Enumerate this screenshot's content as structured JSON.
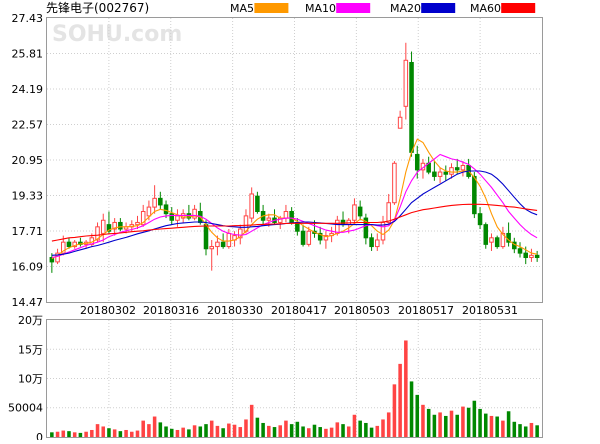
{
  "title": "先锋电子(002767)",
  "watermark": "SOHU.com",
  "legend": [
    {
      "label": "MA5",
      "color": "#ff9900"
    },
    {
      "label": "MA10",
      "color": "#ff00ff"
    },
    {
      "label": "MA20",
      "color": "#0000cc"
    },
    {
      "label": "MA60",
      "color": "#ff0000"
    }
  ],
  "colors": {
    "up": "#ff4444",
    "down": "#008800"
  },
  "chart_data": {
    "type": "candlestick",
    "y_ticks": [
      "27.43",
      "25.81",
      "24.19",
      "22.57",
      "20.95",
      "19.33",
      "17.71",
      "16.09",
      "14.47"
    ],
    "ylim": [
      14.47,
      27.43
    ],
    "x_labels": [
      "20180302",
      "20180316",
      "20180330",
      "20180417",
      "20180503",
      "20180517",
      "20180531"
    ],
    "volume_ticks": [
      "20万",
      "15万",
      "10万",
      "50004",
      "0"
    ],
    "volume_lim": [
      0,
      200000
    ],
    "candles": [
      {
        "o": 16.5,
        "h": 16.7,
        "l": 15.8,
        "c": 16.3
      },
      {
        "o": 16.3,
        "h": 16.9,
        "l": 16.2,
        "c": 16.7
      },
      {
        "o": 16.7,
        "h": 17.5,
        "l": 16.6,
        "c": 17.2
      },
      {
        "o": 17.2,
        "h": 17.4,
        "l": 16.9,
        "c": 17.0
      },
      {
        "o": 17.0,
        "h": 17.3,
        "l": 16.9,
        "c": 17.2
      },
      {
        "o": 17.2,
        "h": 17.4,
        "l": 17.0,
        "c": 17.1
      },
      {
        "o": 17.1,
        "h": 17.3,
        "l": 16.9,
        "c": 17.2
      },
      {
        "o": 17.1,
        "h": 17.6,
        "l": 17.0,
        "c": 17.4
      },
      {
        "o": 17.3,
        "h": 18.1,
        "l": 17.2,
        "c": 17.9
      },
      {
        "o": 17.6,
        "h": 18.5,
        "l": 17.2,
        "c": 18.2
      },
      {
        "o": 18.0,
        "h": 18.6,
        "l": 17.6,
        "c": 17.7
      },
      {
        "o": 17.8,
        "h": 18.3,
        "l": 17.5,
        "c": 18.1
      },
      {
        "o": 18.1,
        "h": 18.3,
        "l": 17.7,
        "c": 17.8
      },
      {
        "o": 17.8,
        "h": 18.1,
        "l": 17.6,
        "c": 17.9
      },
      {
        "o": 17.9,
        "h": 18.2,
        "l": 17.7,
        "c": 18.0
      },
      {
        "o": 18.0,
        "h": 18.4,
        "l": 17.8,
        "c": 18.1
      },
      {
        "o": 18.0,
        "h": 18.9,
        "l": 17.9,
        "c": 18.6
      },
      {
        "o": 18.4,
        "h": 19.1,
        "l": 18.2,
        "c": 18.8
      },
      {
        "o": 18.8,
        "h": 19.8,
        "l": 18.5,
        "c": 19.2
      },
      {
        "o": 19.2,
        "h": 19.5,
        "l": 18.7,
        "c": 18.9
      },
      {
        "o": 18.9,
        "h": 19.1,
        "l": 18.3,
        "c": 18.5
      },
      {
        "o": 18.5,
        "h": 18.8,
        "l": 18.0,
        "c": 18.2
      },
      {
        "o": 18.2,
        "h": 18.7,
        "l": 17.9,
        "c": 18.4
      },
      {
        "o": 18.3,
        "h": 18.7,
        "l": 18.1,
        "c": 18.5
      },
      {
        "o": 18.5,
        "h": 18.9,
        "l": 18.2,
        "c": 18.3
      },
      {
        "o": 18.3,
        "h": 18.9,
        "l": 18.2,
        "c": 18.7
      },
      {
        "o": 18.6,
        "h": 19.0,
        "l": 18.0,
        "c": 18.1
      },
      {
        "o": 18.0,
        "h": 18.2,
        "l": 16.6,
        "c": 16.9
      },
      {
        "o": 16.9,
        "h": 17.3,
        "l": 15.9,
        "c": 17.0
      },
      {
        "o": 17.0,
        "h": 17.5,
        "l": 16.6,
        "c": 17.2
      },
      {
        "o": 17.2,
        "h": 17.6,
        "l": 16.9,
        "c": 17.0
      },
      {
        "o": 17.0,
        "h": 17.8,
        "l": 16.9,
        "c": 17.6
      },
      {
        "o": 17.3,
        "h": 17.7,
        "l": 17.0,
        "c": 17.5
      },
      {
        "o": 17.4,
        "h": 18.0,
        "l": 17.1,
        "c": 17.8
      },
      {
        "o": 17.7,
        "h": 18.7,
        "l": 17.6,
        "c": 18.4
      },
      {
        "o": 18.3,
        "h": 19.7,
        "l": 18.1,
        "c": 19.4
      },
      {
        "o": 19.3,
        "h": 19.5,
        "l": 18.5,
        "c": 18.6
      },
      {
        "o": 18.6,
        "h": 18.9,
        "l": 18.0,
        "c": 18.2
      },
      {
        "o": 18.2,
        "h": 18.5,
        "l": 17.9,
        "c": 18.3
      },
      {
        "o": 18.3,
        "h": 18.7,
        "l": 18.0,
        "c": 18.1
      },
      {
        "o": 18.1,
        "h": 18.4,
        "l": 17.8,
        "c": 18.3
      },
      {
        "o": 18.3,
        "h": 18.9,
        "l": 18.1,
        "c": 18.6
      },
      {
        "o": 18.6,
        "h": 18.8,
        "l": 18.0,
        "c": 18.1
      },
      {
        "o": 18.1,
        "h": 18.3,
        "l": 17.5,
        "c": 17.7
      },
      {
        "o": 17.7,
        "h": 18.0,
        "l": 17.0,
        "c": 17.1
      },
      {
        "o": 17.1,
        "h": 17.9,
        "l": 17.0,
        "c": 17.7
      },
      {
        "o": 17.7,
        "h": 18.2,
        "l": 17.4,
        "c": 17.6
      },
      {
        "o": 17.6,
        "h": 17.9,
        "l": 17.1,
        "c": 17.3
      },
      {
        "o": 17.3,
        "h": 17.7,
        "l": 16.9,
        "c": 17.5
      },
      {
        "o": 17.5,
        "h": 17.9,
        "l": 17.2,
        "c": 17.6
      },
      {
        "o": 17.6,
        "h": 18.4,
        "l": 17.5,
        "c": 18.2
      },
      {
        "o": 18.2,
        "h": 18.6,
        "l": 17.9,
        "c": 18.0
      },
      {
        "o": 18.0,
        "h": 18.3,
        "l": 17.6,
        "c": 18.2
      },
      {
        "o": 18.2,
        "h": 19.2,
        "l": 18.0,
        "c": 18.9
      },
      {
        "o": 18.8,
        "h": 19.1,
        "l": 18.2,
        "c": 18.4
      },
      {
        "o": 18.3,
        "h": 18.5,
        "l": 17.1,
        "c": 17.4
      },
      {
        "o": 17.4,
        "h": 17.6,
        "l": 16.8,
        "c": 17.0
      },
      {
        "o": 17.0,
        "h": 17.6,
        "l": 16.8,
        "c": 17.3
      },
      {
        "o": 17.3,
        "h": 18.4,
        "l": 17.1,
        "c": 18.1
      },
      {
        "o": 18.1,
        "h": 19.4,
        "l": 18.0,
        "c": 19.0
      },
      {
        "o": 19.0,
        "h": 20.9,
        "l": 18.9,
        "c": 20.8
      },
      {
        "o": 22.4,
        "h": 23.2,
        "l": 22.4,
        "c": 22.9
      },
      {
        "o": 23.4,
        "h": 26.3,
        "l": 22.8,
        "c": 25.5
      },
      {
        "o": 25.4,
        "h": 25.9,
        "l": 21.1,
        "c": 21.3
      },
      {
        "o": 21.2,
        "h": 21.6,
        "l": 20.1,
        "c": 20.5
      },
      {
        "o": 20.5,
        "h": 21.0,
        "l": 20.1,
        "c": 20.8
      },
      {
        "o": 20.8,
        "h": 21.1,
        "l": 20.3,
        "c": 20.4
      },
      {
        "o": 20.4,
        "h": 20.9,
        "l": 20.0,
        "c": 20.2
      },
      {
        "o": 20.2,
        "h": 20.6,
        "l": 19.9,
        "c": 20.4
      },
      {
        "o": 20.4,
        "h": 20.7,
        "l": 20.0,
        "c": 20.3
      },
      {
        "o": 20.3,
        "h": 20.8,
        "l": 20.1,
        "c": 20.6
      },
      {
        "o": 20.6,
        "h": 21.0,
        "l": 20.3,
        "c": 20.5
      },
      {
        "o": 20.5,
        "h": 20.9,
        "l": 20.2,
        "c": 20.7
      },
      {
        "o": 20.7,
        "h": 21.0,
        "l": 20.1,
        "c": 20.2
      },
      {
        "o": 20.2,
        "h": 20.4,
        "l": 18.3,
        "c": 18.5
      },
      {
        "o": 18.5,
        "h": 18.8,
        "l": 17.8,
        "c": 18.0
      },
      {
        "o": 18.0,
        "h": 18.1,
        "l": 16.9,
        "c": 17.1
      },
      {
        "o": 17.2,
        "h": 17.6,
        "l": 16.8,
        "c": 17.4
      },
      {
        "o": 17.4,
        "h": 17.5,
        "l": 16.9,
        "c": 17.0
      },
      {
        "o": 17.0,
        "h": 17.9,
        "l": 16.9,
        "c": 17.6
      },
      {
        "o": 17.6,
        "h": 18.1,
        "l": 17.0,
        "c": 17.2
      },
      {
        "o": 17.2,
        "h": 17.4,
        "l": 16.7,
        "c": 16.9
      },
      {
        "o": 16.9,
        "h": 17.2,
        "l": 16.5,
        "c": 16.7
      },
      {
        "o": 16.7,
        "h": 17.0,
        "l": 16.2,
        "c": 16.5
      },
      {
        "o": 16.5,
        "h": 16.9,
        "l": 16.3,
        "c": 16.6
      },
      {
        "o": 16.6,
        "h": 16.8,
        "l": 16.3,
        "c": 16.5
      }
    ],
    "volumes": [
      8000,
      9000,
      11000,
      10000,
      8000,
      7000,
      9000,
      12000,
      22000,
      18000,
      15000,
      13000,
      10000,
      12000,
      9000,
      11000,
      28000,
      22000,
      35000,
      25000,
      18000,
      14000,
      12000,
      16000,
      13000,
      20000,
      18000,
      22000,
      28000,
      19000,
      15000,
      23000,
      21000,
      17000,
      30000,
      55000,
      33000,
      24000,
      19000,
      17000,
      20000,
      28000,
      22000,
      26000,
      18000,
      15000,
      21000,
      17000,
      14000,
      16000,
      25000,
      22000,
      18000,
      38000,
      28000,
      24000,
      16000,
      19000,
      30000,
      42000,
      90000,
      125000,
      165000,
      95000,
      72000,
      55000,
      48000,
      38000,
      42000,
      36000,
      45000,
      38000,
      52000,
      50000,
      62000,
      48000,
      40000,
      36000,
      35000,
      28000,
      44000,
      26000,
      22000,
      18000,
      24000,
      20000
    ],
    "ma": {
      "MA5": [
        16.45,
        16.6,
        16.8,
        16.95,
        17.05,
        17.12,
        17.15,
        17.2,
        17.35,
        17.55,
        17.75,
        17.85,
        17.9,
        17.9,
        17.92,
        17.95,
        18.1,
        18.35,
        18.6,
        18.7,
        18.65,
        18.55,
        18.45,
        18.35,
        18.35,
        18.4,
        18.35,
        18.0,
        17.65,
        17.4,
        17.25,
        17.25,
        17.3,
        17.45,
        17.7,
        18.0,
        18.25,
        18.4,
        18.45,
        18.45,
        18.3,
        18.3,
        18.3,
        18.15,
        17.95,
        17.8,
        17.65,
        17.55,
        17.45,
        17.5,
        17.6,
        17.7,
        17.85,
        18.05,
        18.25,
        18.15,
        17.95,
        17.7,
        17.55,
        17.75,
        18.2,
        19.2,
        20.4,
        21.3,
        21.9,
        21.75,
        21.3,
        20.9,
        20.6,
        20.45,
        20.4,
        20.4,
        20.45,
        20.45,
        20.15,
        19.75,
        19.2,
        18.5,
        17.9,
        17.55,
        17.3,
        17.1,
        17.0,
        16.85,
        16.7,
        16.65
      ],
      "MA10": [
        16.5,
        16.55,
        16.65,
        16.75,
        16.85,
        16.95,
        17.05,
        17.12,
        17.2,
        17.3,
        17.45,
        17.55,
        17.65,
        17.72,
        17.78,
        17.85,
        17.95,
        18.1,
        18.25,
        18.35,
        18.4,
        18.42,
        18.42,
        18.42,
        18.42,
        18.42,
        18.38,
        18.25,
        18.05,
        17.85,
        17.7,
        17.6,
        17.55,
        17.52,
        17.55,
        17.7,
        17.85,
        18.0,
        18.1,
        18.2,
        18.25,
        18.3,
        18.3,
        18.25,
        18.15,
        18.05,
        17.95,
        17.85,
        17.75,
        17.7,
        17.65,
        17.65,
        17.7,
        17.75,
        17.85,
        17.95,
        18.0,
        17.95,
        17.9,
        17.95,
        18.2,
        18.8,
        19.5,
        20.0,
        20.4,
        20.6,
        20.8,
        21.0,
        21.2,
        21.1,
        21.0,
        20.95,
        20.85,
        20.75,
        20.55,
        20.3,
        20.0,
        19.7,
        19.35,
        19.0,
        18.6,
        18.3,
        18.0,
        17.75,
        17.55,
        17.4
      ],
      "MA20": [
        16.6,
        16.62,
        16.65,
        16.7,
        16.78,
        16.85,
        16.92,
        17.0,
        17.05,
        17.12,
        17.2,
        17.28,
        17.35,
        17.42,
        17.5,
        17.58,
        17.65,
        17.72,
        17.8,
        17.88,
        17.95,
        18.0,
        18.05,
        18.08,
        18.1,
        18.12,
        18.12,
        18.1,
        18.05,
        18.0,
        17.95,
        17.92,
        17.9,
        17.88,
        17.88,
        17.9,
        17.92,
        17.95,
        17.98,
        18.0,
        18.02,
        18.05,
        18.08,
        18.1,
        18.12,
        18.12,
        18.1,
        18.08,
        18.05,
        18.03,
        18.0,
        18.0,
        18.0,
        18.0,
        18.0,
        18.0,
        18.0,
        17.98,
        17.98,
        18.02,
        18.15,
        18.4,
        18.7,
        19.0,
        19.2,
        19.4,
        19.55,
        19.7,
        19.85,
        20.0,
        20.15,
        20.3,
        20.4,
        20.45,
        20.45,
        20.45,
        20.4,
        20.3,
        20.1,
        19.85,
        19.55,
        19.25,
        18.95,
        18.7,
        18.55,
        18.45
      ],
      "MA60": [
        17.25,
        17.3,
        17.35,
        17.4,
        17.42,
        17.45,
        17.48,
        17.5,
        17.52,
        17.55,
        17.58,
        17.6,
        17.62,
        17.65,
        17.68,
        17.7,
        17.72,
        17.75,
        17.78,
        17.8,
        17.82,
        17.84,
        17.86,
        17.88,
        17.9,
        17.92,
        17.93,
        17.94,
        17.94,
        17.94,
        17.94,
        17.94,
        17.95,
        17.96,
        17.97,
        17.98,
        18.0,
        18.01,
        18.02,
        18.03,
        18.04,
        18.05,
        18.06,
        18.06,
        18.06,
        18.06,
        18.06,
        18.06,
        18.06,
        18.06,
        18.06,
        18.07,
        18.08,
        18.09,
        18.1,
        18.1,
        18.1,
        18.1,
        18.12,
        18.16,
        18.25,
        18.35,
        18.45,
        18.55,
        18.62,
        18.68,
        18.72,
        18.76,
        18.8,
        18.84,
        18.88,
        18.9,
        18.92,
        18.93,
        18.93,
        18.93,
        18.92,
        18.9,
        18.88,
        18.85,
        18.82,
        18.8,
        18.76,
        18.72,
        18.68,
        18.65
      ]
    }
  }
}
